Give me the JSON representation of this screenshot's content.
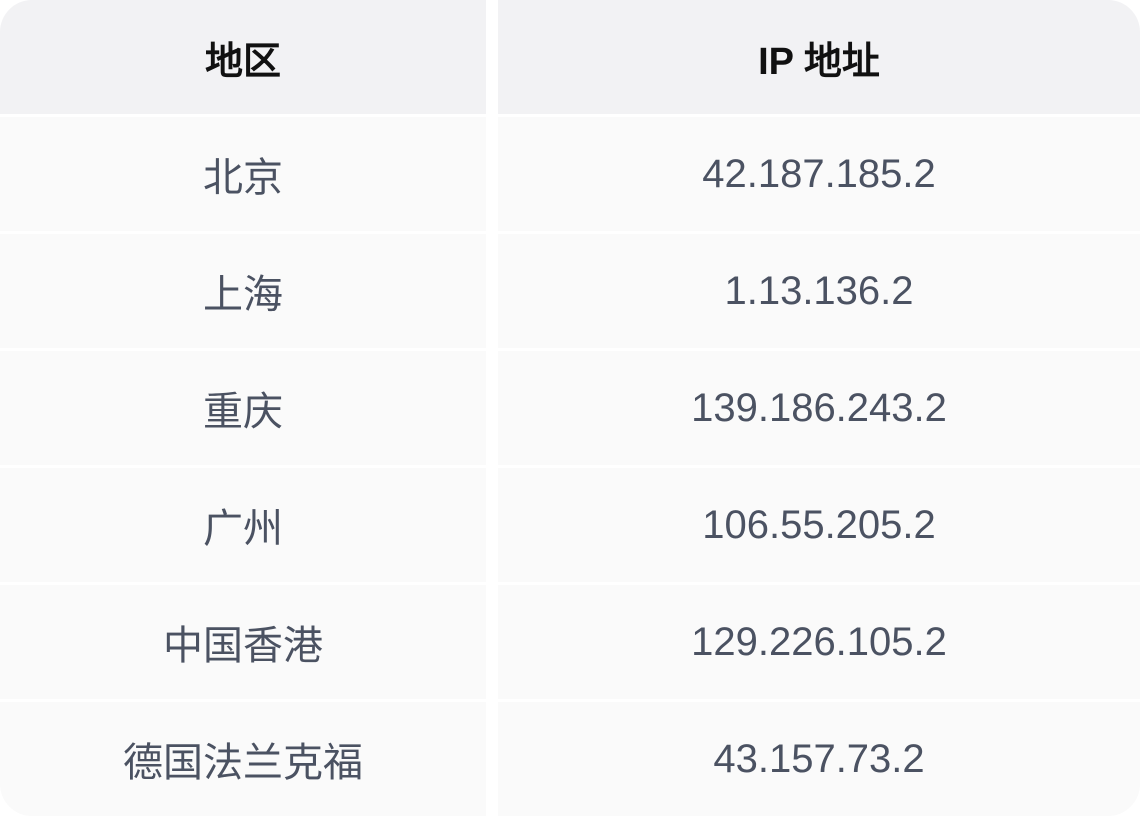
{
  "table": {
    "headers": [
      "地区",
      "IP 地址"
    ],
    "rows": [
      {
        "region": "北京",
        "ip": "42.187.185.2"
      },
      {
        "region": "上海",
        "ip": "1.13.136.2"
      },
      {
        "region": "重庆",
        "ip": "139.186.243.2"
      },
      {
        "region": "广州",
        "ip": "106.55.205.2"
      },
      {
        "region": "中国香港",
        "ip": "129.226.105.2"
      },
      {
        "region": "德国法兰克福",
        "ip": "43.157.73.2"
      }
    ]
  },
  "colors": {
    "header_bg": "#f2f2f4",
    "row_bg": "#fafafa",
    "text": "#4b5262",
    "header_text": "#111111"
  }
}
